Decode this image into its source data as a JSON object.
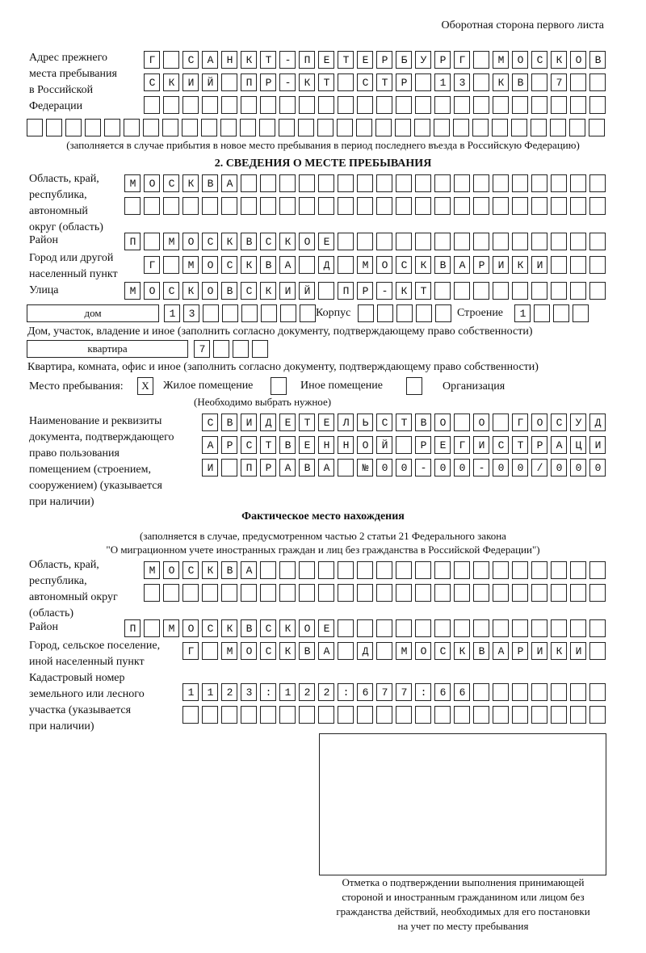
{
  "header": "Оборотная сторона первого листа",
  "prev_address": {
    "label": [
      "Адрес прежнего",
      "места пребывания",
      "в Российской",
      "Федерации"
    ],
    "rows": [
      "Г САНКТ-ПЕТЕРБУРГ МОСКОВ",
      "СКИЙ ПР-КТ СТР 13 КВ 7  ",
      "                        ",
      "                              "
    ],
    "note": "(заполняется в случае прибытия в новое место пребывания в период последнего въезда в Российскую Федерацию)"
  },
  "section2": {
    "title": "2. СВЕДЕНИЯ О МЕСТЕ ПРЕБЫВАНИЯ",
    "region": {
      "label": [
        "Область, край,",
        "республика,",
        "автономный",
        "округ (область)"
      ],
      "rows": [
        "МОСКВА                   ",
        "                         "
      ]
    },
    "district": {
      "label": "Район",
      "row": "П МОСКВСКОЕ              "
    },
    "city": {
      "label": [
        "Город или другой",
        "населенный пункт"
      ],
      "row": "Г МОСКВА Д МОСКВАРИКИ   "
    },
    "street": {
      "label": "Улица",
      "row": "МОСКОВСКИЙ ПР-КТ         "
    },
    "house": {
      "type": "дом",
      "row": "13      ",
      "korpus_label": "Корпус",
      "korpus_row": "     ",
      "stroenie_label": "Строение",
      "stroenie_row": "1   ",
      "note": "Дом, участок, владение и иное (заполнить согласно документу, подтверждающему право собственности)"
    },
    "flat": {
      "type": "квартира",
      "row": "7   ",
      "note": "Квартира, комната, офис и иное (заполнить согласно документу, подтверждающему право собственности)"
    },
    "stay_place": {
      "label": "Место пребывания:",
      "options": [
        {
          "label": "Жилое помещение",
          "mark": "Х"
        },
        {
          "label": "Иное помещение",
          "mark": ""
        },
        {
          "label": "Организация",
          "mark": ""
        }
      ],
      "hint": "(Необходимо выбрать нужное)"
    },
    "document": {
      "label": [
        "Наименование и реквизиты",
        "документа, подтверждающего",
        "право пользования",
        "помещением (строением,",
        "сооружением) (указывается",
        "при наличии)"
      ],
      "rows": [
        "СВИДЕТЕЛЬСТВО О ГОСУД",
        "АРСТВЕННОЙ РЕГИСТРАЦИ",
        "И ПРАВА №00-00-00/000"
      ]
    }
  },
  "actual": {
    "title": "Фактическое место нахождения",
    "note": [
      "(заполняется в случае, предусмотренном частью 2 статьи 21 Федерального закона",
      "\"О миграционном учете иностранных граждан и лиц без гражданства в Российской Федерации\")"
    ],
    "region": {
      "label": [
        "Область, край,",
        "республика,",
        "автономный округ",
        "(область)"
      ],
      "rows": [
        "МОСКВА                  ",
        "                        "
      ]
    },
    "district": {
      "label": "Район",
      "row": "П МОСКВСКОЕ              "
    },
    "city": {
      "label": [
        "Город, сельское поселение,",
        "иной населенный пункт"
      ],
      "row": "Г МОСКВА Д МОСКВАРИКИ "
    },
    "cadastral": {
      "label": [
        "Кадастровый номер",
        "земельного или лесного",
        "участка (указывается",
        "при наличии)"
      ],
      "rows": [
        "1123:122:677:66       ",
        "                      "
      ]
    }
  },
  "confirmation": {
    "caption": [
      "Отметка о подтверждении выполнения принимающей",
      "стороной и иностранным гражданином или лицом без",
      "гражданства действий, необходимых для его постановки",
      "на учет по месту пребывания"
    ]
  }
}
